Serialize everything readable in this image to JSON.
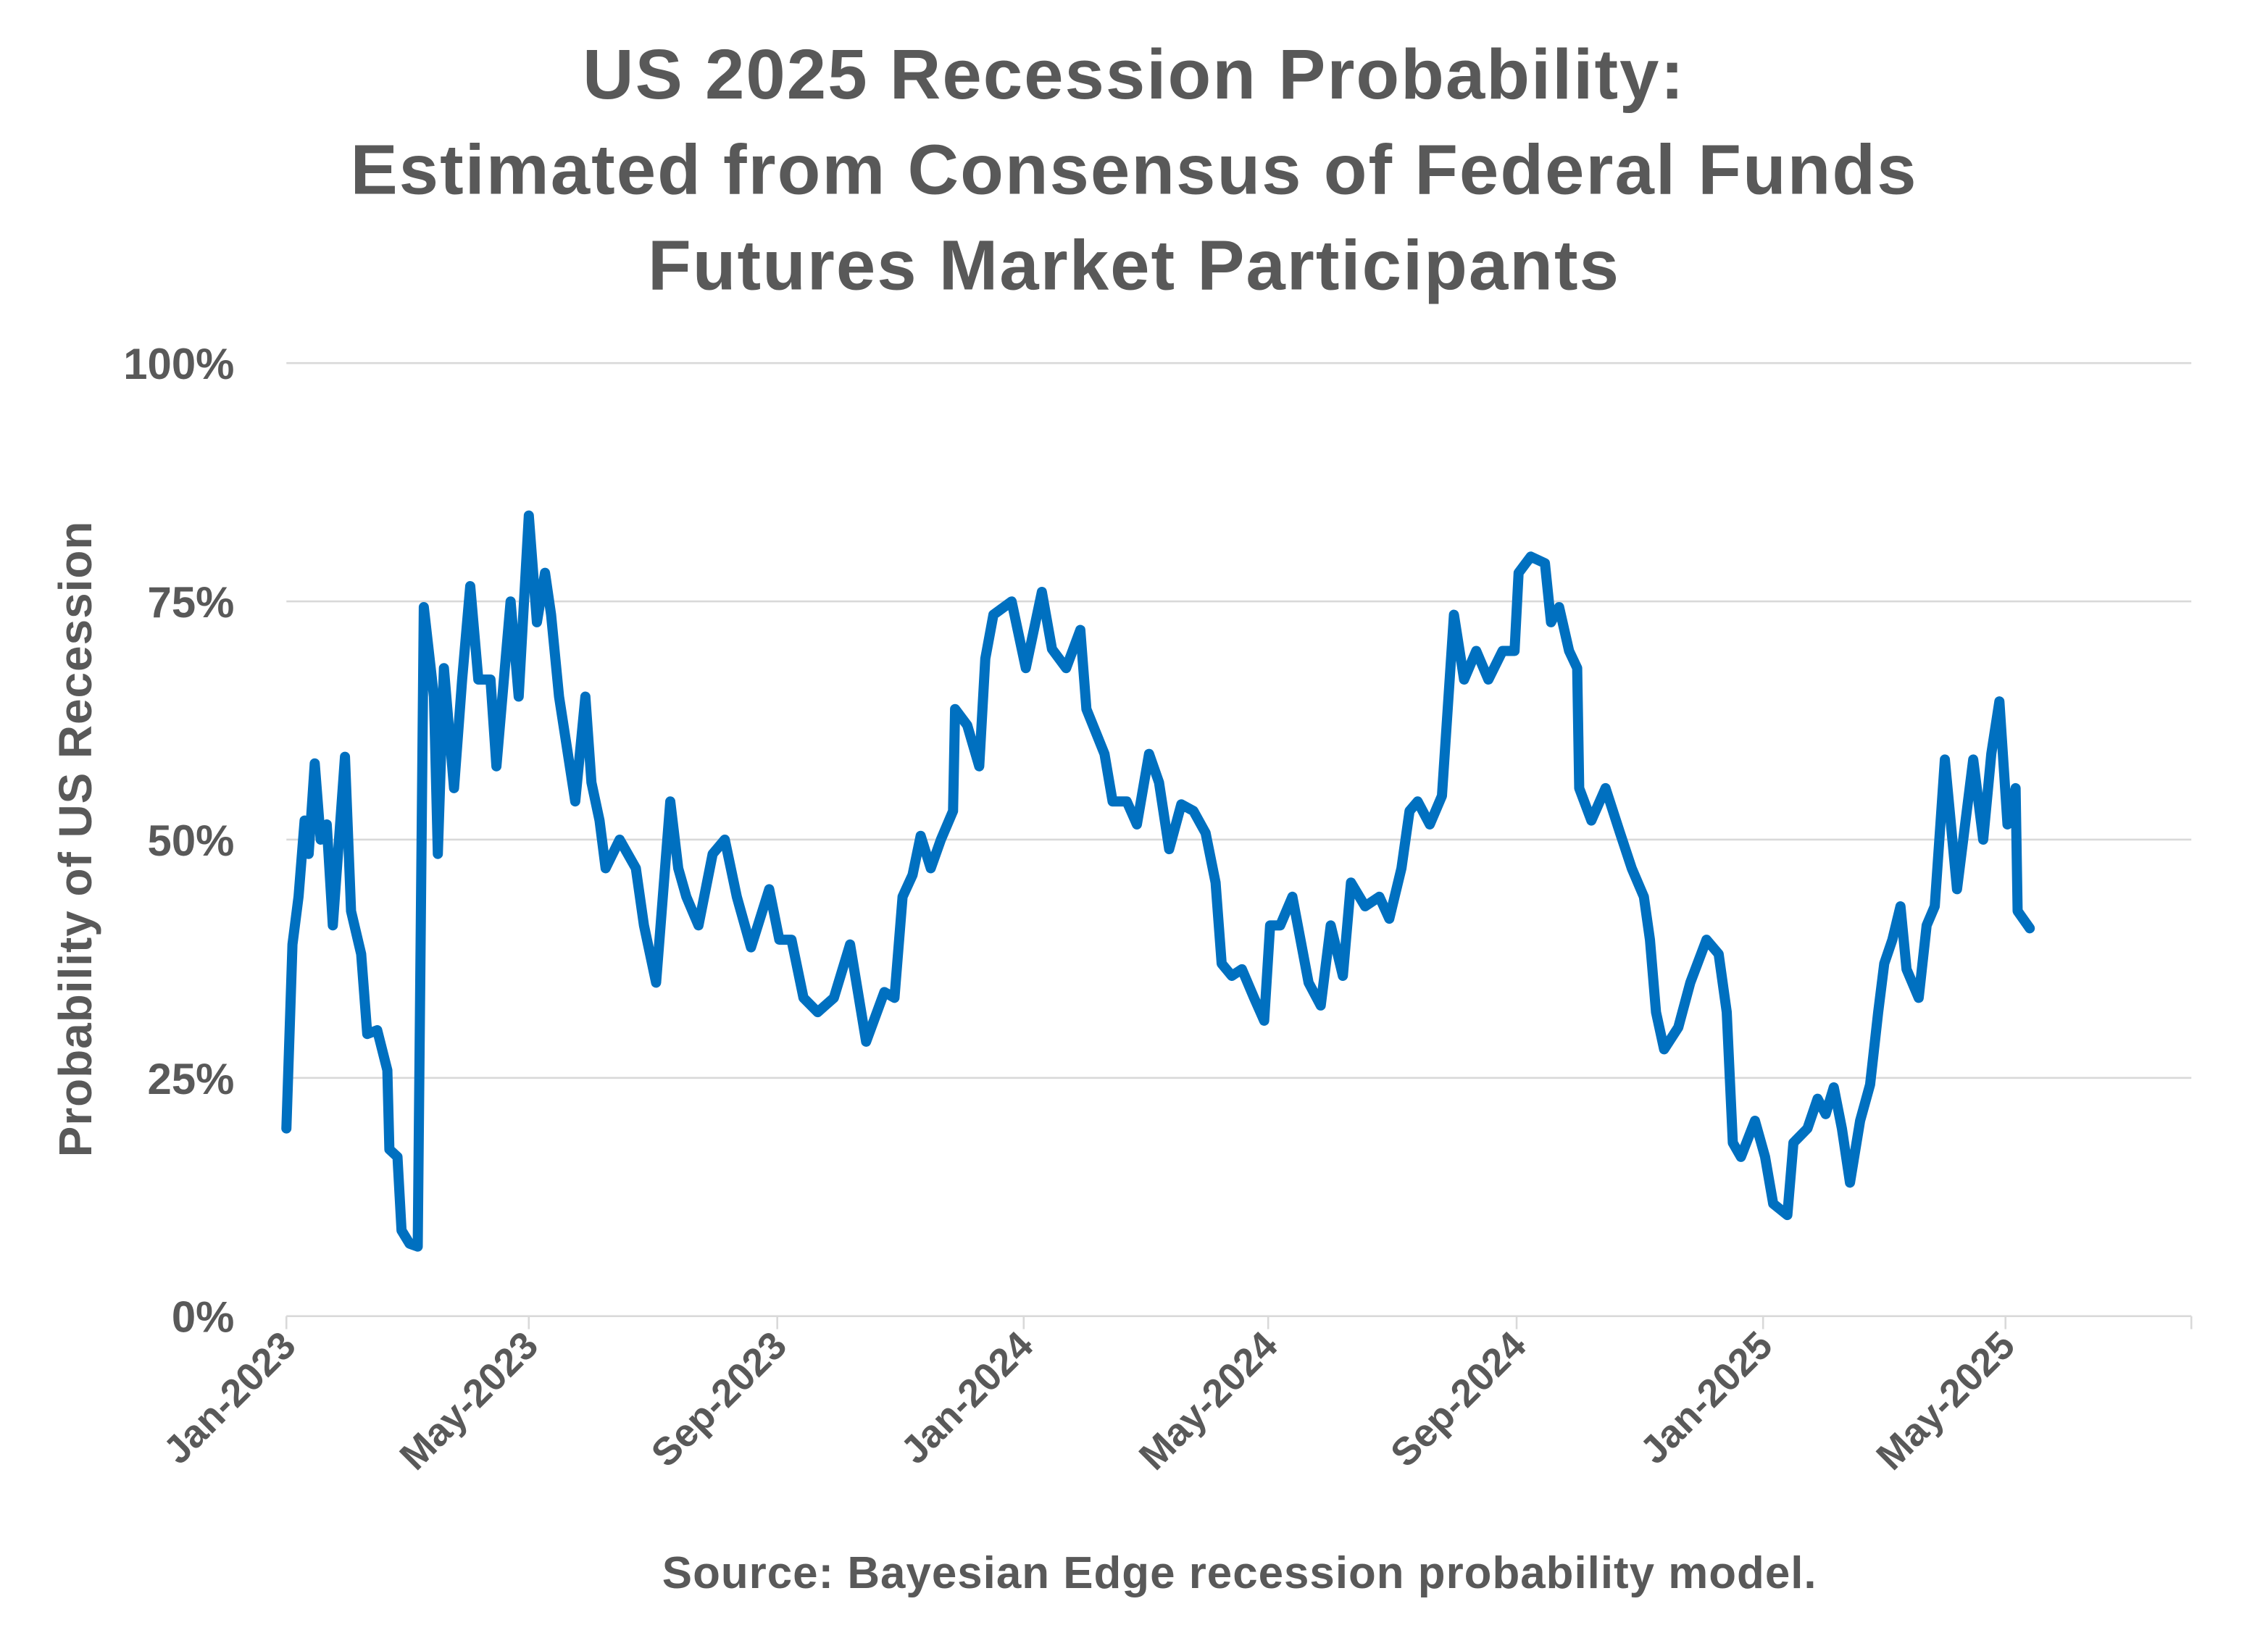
{
  "chart_data": {
    "type": "line",
    "title": [
      "US 2025 Recession Probability:",
      "Estimated from Consensus of Federal Funds",
      "Futures Market Participants"
    ],
    "xlabel": "",
    "ylabel": "Probability of US Recession",
    "source": "Source:  Bayesian Edge recession probability model.",
    "ylim": [
      0,
      100
    ],
    "xlim": [
      "2023-01-01",
      "2025-08-01"
    ],
    "y_ticks": [
      {
        "v": 0,
        "label": "0%"
      },
      {
        "v": 25,
        "label": "25%"
      },
      {
        "v": 50,
        "label": "50%"
      },
      {
        "v": 75,
        "label": "75%"
      },
      {
        "v": 100,
        "label": "100%"
      }
    ],
    "x_ticks": [
      {
        "date": "2023-01-01",
        "label": "Jan-2023"
      },
      {
        "date": "2023-05-01",
        "label": "May-2023"
      },
      {
        "date": "2023-09-01",
        "label": "Sep-2023"
      },
      {
        "date": "2024-01-01",
        "label": "Jan-2024"
      },
      {
        "date": "2024-05-01",
        "label": "May-2024"
      },
      {
        "date": "2024-09-01",
        "label": "Sep-2024"
      },
      {
        "date": "2025-01-01",
        "label": "Jan-2025"
      },
      {
        "date": "2025-05-01",
        "label": "May-2025"
      }
    ],
    "grid": "horizontal",
    "line_color": "#0070C0",
    "text_color": "#595959",
    "points": [
      [
        "2023-01-01",
        19.7
      ],
      [
        "2023-01-04",
        39
      ],
      [
        "2023-01-07",
        44
      ],
      [
        "2023-01-10",
        52
      ],
      [
        "2023-01-12",
        48.5
      ],
      [
        "2023-01-15",
        58
      ],
      [
        "2023-01-18",
        50
      ],
      [
        "2023-01-21",
        51.6
      ],
      [
        "2023-01-24",
        41
      ],
      [
        "2023-01-30",
        58.7
      ],
      [
        "2023-02-02",
        42.5
      ],
      [
        "2023-02-07",
        38
      ],
      [
        "2023-02-10",
        29.6
      ],
      [
        "2023-02-15",
        30
      ],
      [
        "2023-02-20",
        25.8
      ],
      [
        "2023-02-21",
        17.5
      ],
      [
        "2023-02-25",
        16.7
      ],
      [
        "2023-02-27",
        9
      ],
      [
        "2023-03-03",
        7.6
      ],
      [
        "2023-03-07",
        7.3
      ],
      [
        "2023-03-10",
        74.4
      ],
      [
        "2023-03-15",
        65
      ],
      [
        "2023-03-17",
        48.5
      ],
      [
        "2023-03-20",
        68
      ],
      [
        "2023-03-25",
        55.4
      ],
      [
        "2023-03-29",
        66.8
      ],
      [
        "2023-04-02",
        76.6
      ],
      [
        "2023-04-06",
        66.8
      ],
      [
        "2023-04-12",
        66.8
      ],
      [
        "2023-04-15",
        57.7
      ],
      [
        "2023-04-22",
        75
      ],
      [
        "2023-04-26",
        65
      ],
      [
        "2023-05-01",
        84
      ],
      [
        "2023-05-05",
        72.8
      ],
      [
        "2023-05-09",
        78
      ],
      [
        "2023-05-12",
        73.6
      ],
      [
        "2023-05-16",
        65
      ],
      [
        "2023-05-24",
        54
      ],
      [
        "2023-05-29",
        65
      ],
      [
        "2023-06-01",
        56
      ],
      [
        "2023-06-05",
        52
      ],
      [
        "2023-06-08",
        47
      ],
      [
        "2023-06-15",
        50
      ],
      [
        "2023-06-23",
        47
      ],
      [
        "2023-06-27",
        41
      ],
      [
        "2023-07-03",
        35
      ],
      [
        "2023-07-10",
        54
      ],
      [
        "2023-07-14",
        47
      ],
      [
        "2023-07-18",
        44
      ],
      [
        "2023-07-24",
        41
      ],
      [
        "2023-07-31",
        48.5
      ],
      [
        "2023-08-06",
        50
      ],
      [
        "2023-08-12",
        44
      ],
      [
        "2023-08-19",
        38.7
      ],
      [
        "2023-08-28",
        44.8
      ],
      [
        "2023-09-02",
        39.5
      ],
      [
        "2023-09-08",
        39.5
      ],
      [
        "2023-09-14",
        33.4
      ],
      [
        "2023-09-21",
        31.9
      ],
      [
        "2023-09-29",
        33.4
      ],
      [
        "2023-10-07",
        39
      ],
      [
        "2023-10-15",
        28.8
      ],
      [
        "2023-10-24",
        34
      ],
      [
        "2023-10-29",
        33.4
      ],
      [
        "2023-11-02",
        44
      ],
      [
        "2023-11-07",
        46.3
      ],
      [
        "2023-11-11",
        50.4
      ],
      [
        "2023-11-16",
        47
      ],
      [
        "2023-11-21",
        50
      ],
      [
        "2023-11-27",
        53
      ],
      [
        "2023-11-28",
        63.7
      ],
      [
        "2023-12-04",
        62
      ],
      [
        "2023-12-10",
        57.7
      ],
      [
        "2023-12-13",
        69
      ],
      [
        "2023-12-17",
        73.6
      ],
      [
        "2023-12-26",
        75
      ],
      [
        "2024-01-02",
        68
      ],
      [
        "2024-01-10",
        76
      ],
      [
        "2024-01-15",
        70
      ],
      [
        "2024-01-22",
        68
      ],
      [
        "2024-01-29",
        72
      ],
      [
        "2024-02-01",
        63.7
      ],
      [
        "2024-02-10",
        59
      ],
      [
        "2024-02-14",
        54
      ],
      [
        "2024-02-21",
        54
      ],
      [
        "2024-02-26",
        51.6
      ],
      [
        "2024-03-03",
        59
      ],
      [
        "2024-03-08",
        56
      ],
      [
        "2024-03-13",
        49
      ],
      [
        "2024-03-19",
        53.7
      ],
      [
        "2024-03-25",
        53
      ],
      [
        "2024-03-31",
        50.7
      ],
      [
        "2024-04-05",
        45.5
      ],
      [
        "2024-04-08",
        37
      ],
      [
        "2024-04-13",
        35.7
      ],
      [
        "2024-04-18",
        36.4
      ],
      [
        "2024-04-24",
        33.4
      ],
      [
        "2024-04-29",
        31
      ],
      [
        "2024-05-02",
        41
      ],
      [
        "2024-05-07",
        41
      ],
      [
        "2024-05-13",
        44
      ],
      [
        "2024-05-21",
        35
      ],
      [
        "2024-05-27",
        32.6
      ],
      [
        "2024-06-01",
        41
      ],
      [
        "2024-06-07",
        35.7
      ],
      [
        "2024-06-11",
        45.5
      ],
      [
        "2024-06-18",
        43
      ],
      [
        "2024-06-25",
        44
      ],
      [
        "2024-06-30",
        41.7
      ],
      [
        "2024-07-06",
        47
      ],
      [
        "2024-07-10",
        53
      ],
      [
        "2024-07-14",
        54
      ],
      [
        "2024-07-20",
        51.6
      ],
      [
        "2024-07-26",
        54.6
      ],
      [
        "2024-08-01",
        73.6
      ],
      [
        "2024-08-06",
        66.8
      ],
      [
        "2024-08-12",
        69.8
      ],
      [
        "2024-08-18",
        66.8
      ],
      [
        "2024-08-25",
        69.8
      ],
      [
        "2024-08-31",
        69.8
      ],
      [
        "2024-09-02",
        78
      ],
      [
        "2024-09-08",
        79.7
      ],
      [
        "2024-09-15",
        79
      ],
      [
        "2024-09-18",
        72.8
      ],
      [
        "2024-09-22",
        74.4
      ],
      [
        "2024-09-27",
        69.8
      ],
      [
        "2024-10-01",
        68
      ],
      [
        "2024-10-02",
        55.4
      ],
      [
        "2024-10-08",
        52
      ],
      [
        "2024-10-15",
        55.4
      ],
      [
        "2024-10-22",
        50.8
      ],
      [
        "2024-10-28",
        47
      ],
      [
        "2024-11-03",
        44
      ],
      [
        "2024-11-06",
        39.5
      ],
      [
        "2024-11-09",
        31.9
      ],
      [
        "2024-11-13",
        28
      ],
      [
        "2024-11-20",
        30.3
      ],
      [
        "2024-11-26",
        35
      ],
      [
        "2024-12-04",
        39.5
      ],
      [
        "2024-12-10",
        38
      ],
      [
        "2024-12-14",
        31.9
      ],
      [
        "2024-12-17",
        18.2
      ],
      [
        "2024-12-21",
        16.7
      ],
      [
        "2024-12-28",
        20.5
      ],
      [
        "2025-01-02",
        16.7
      ],
      [
        "2025-01-06",
        11.8
      ],
      [
        "2025-01-13",
        10.6
      ],
      [
        "2025-01-16",
        18.2
      ],
      [
        "2025-01-23",
        19.7
      ],
      [
        "2025-01-28",
        22.8
      ],
      [
        "2025-02-01",
        21.2
      ],
      [
        "2025-02-05",
        24
      ],
      [
        "2025-02-09",
        19.7
      ],
      [
        "2025-02-13",
        14
      ],
      [
        "2025-02-18",
        20.5
      ],
      [
        "2025-02-23",
        24.3
      ],
      [
        "2025-02-27",
        31.9
      ],
      [
        "2025-03-02",
        37
      ],
      [
        "2025-03-06",
        39.5
      ],
      [
        "2025-03-10",
        43
      ],
      [
        "2025-03-13",
        36.4
      ],
      [
        "2025-03-19",
        33.4
      ],
      [
        "2025-03-23",
        41
      ],
      [
        "2025-03-27",
        43
      ],
      [
        "2025-04-01",
        58.4
      ],
      [
        "2025-04-07",
        44.8
      ],
      [
        "2025-04-15",
        58.4
      ],
      [
        "2025-04-20",
        50
      ],
      [
        "2025-04-24",
        59
      ],
      [
        "2025-04-28",
        64.5
      ],
      [
        "2025-05-02",
        51.6
      ],
      [
        "2025-05-06",
        55.4
      ],
      [
        "2025-05-07",
        42.5
      ],
      [
        "2025-05-13",
        40.7
      ]
    ]
  }
}
